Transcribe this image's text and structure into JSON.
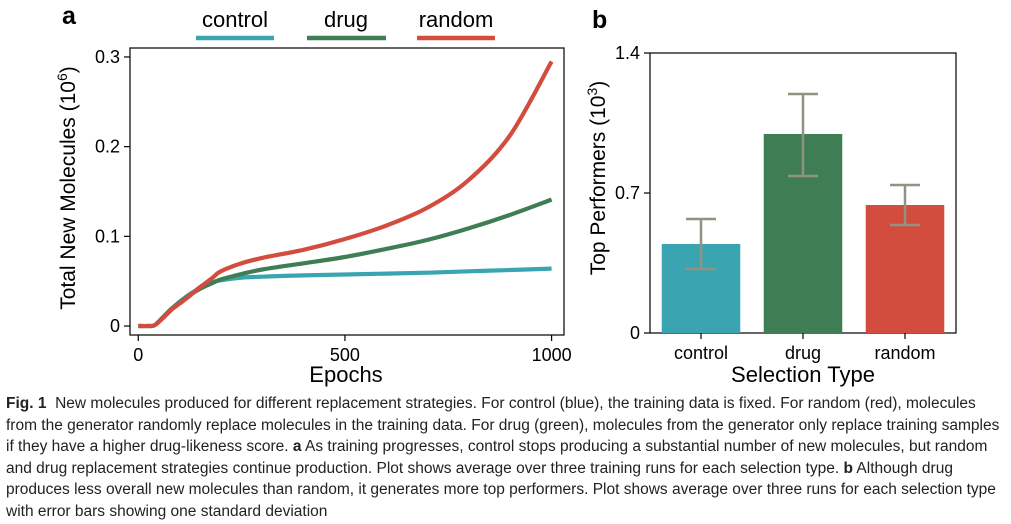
{
  "figure": {
    "panel_a_letter": "a",
    "panel_b_letter": "b"
  },
  "colors": {
    "control": "#3aa5b0",
    "drug": "#3f7d54",
    "random": "#d34d3f",
    "error_bar": "#8f9481"
  },
  "chart_data": [
    {
      "type": "line",
      "panel": "a",
      "xlabel": "Epochs",
      "ylabel": "Total New Molecules (10^6)",
      "ylabel_base": "Total New Molecules (10",
      "ylabel_exp": "6",
      "ylabel_close": ")",
      "xlim": [
        -20,
        1030
      ],
      "ylim": [
        -0.01,
        0.31
      ],
      "xticks": [
        0,
        500,
        1000
      ],
      "xtick_labels": [
        "0",
        "500",
        "1000"
      ],
      "yticks": [
        0,
        0.1,
        0.2,
        0.3
      ],
      "ytick_labels": [
        "0",
        "0.1",
        "0.2",
        "0.3"
      ],
      "legend": {
        "placement": "top",
        "entries": [
          "control",
          "drug",
          "random"
        ]
      },
      "series": [
        {
          "name": "control",
          "x": [
            0,
            25,
            40,
            60,
            80,
            100,
            120,
            140,
            160,
            180,
            200,
            250,
            300,
            400,
            500,
            600,
            700,
            800,
            900,
            1000
          ],
          "y": [
            0,
            0,
            0.001,
            0.01,
            0.019,
            0.027,
            0.034,
            0.04,
            0.045,
            0.049,
            0.051,
            0.054,
            0.055,
            0.0565,
            0.0575,
            0.0585,
            0.0595,
            0.061,
            0.0625,
            0.064
          ]
        },
        {
          "name": "drug",
          "x": [
            0,
            25,
            40,
            60,
            80,
            100,
            120,
            140,
            160,
            180,
            200,
            250,
            300,
            400,
            500,
            600,
            700,
            800,
            900,
            1000
          ],
          "y": [
            0,
            0,
            0.001,
            0.01,
            0.019,
            0.026,
            0.033,
            0.039,
            0.044,
            0.048,
            0.052,
            0.058,
            0.063,
            0.07,
            0.077,
            0.086,
            0.096,
            0.109,
            0.124,
            0.141
          ]
        },
        {
          "name": "random",
          "x": [
            0,
            25,
            40,
            60,
            80,
            100,
            120,
            140,
            160,
            180,
            200,
            250,
            300,
            400,
            500,
            600,
            700,
            800,
            900,
            1000
          ],
          "y": [
            0,
            0,
            0.001,
            0.009,
            0.018,
            0.025,
            0.032,
            0.04,
            0.047,
            0.054,
            0.061,
            0.07,
            0.076,
            0.085,
            0.097,
            0.112,
            0.132,
            0.163,
            0.213,
            0.295
          ]
        }
      ]
    },
    {
      "type": "bar",
      "panel": "b",
      "xlabel": "Selection Type",
      "ylabel": "Top Performers (10^3)",
      "ylabel_base": "Top Performers (10",
      "ylabel_exp": "3",
      "ylabel_close": ")",
      "categories": [
        "control",
        "drug",
        "random"
      ],
      "values": [
        0.445,
        0.995,
        0.64
      ],
      "error_low": [
        0.32,
        0.785,
        0.54
      ],
      "error_high": [
        0.57,
        1.195,
        0.74
      ],
      "ylim": [
        0,
        1.4
      ],
      "yticks": [
        0,
        0.7,
        1.4
      ],
      "ytick_labels": [
        "0",
        "0.7",
        "1.4"
      ]
    }
  ],
  "caption": {
    "fig_label": "Fig. 1",
    "text_1": "New molecules produced for different replacement strategies. For control (blue), the training data is fixed. For random (red), molecules from the generator randomly replace molecules in the training data. For drug (green), molecules from the generator only replace training samples if they have a higher drug-likeness score.",
    "label_a": "a",
    "text_a": "As training progresses, control stops producing a substantial number of new molecules, but random and drug replacement strategies continue production. Plot shows average over three training runs for each selection type.",
    "label_b": "b",
    "text_b": "Although drug produces less overall new molecules than random, it generates more top performers. Plot shows average over three runs for each selection type with error bars showing one standard deviation"
  }
}
